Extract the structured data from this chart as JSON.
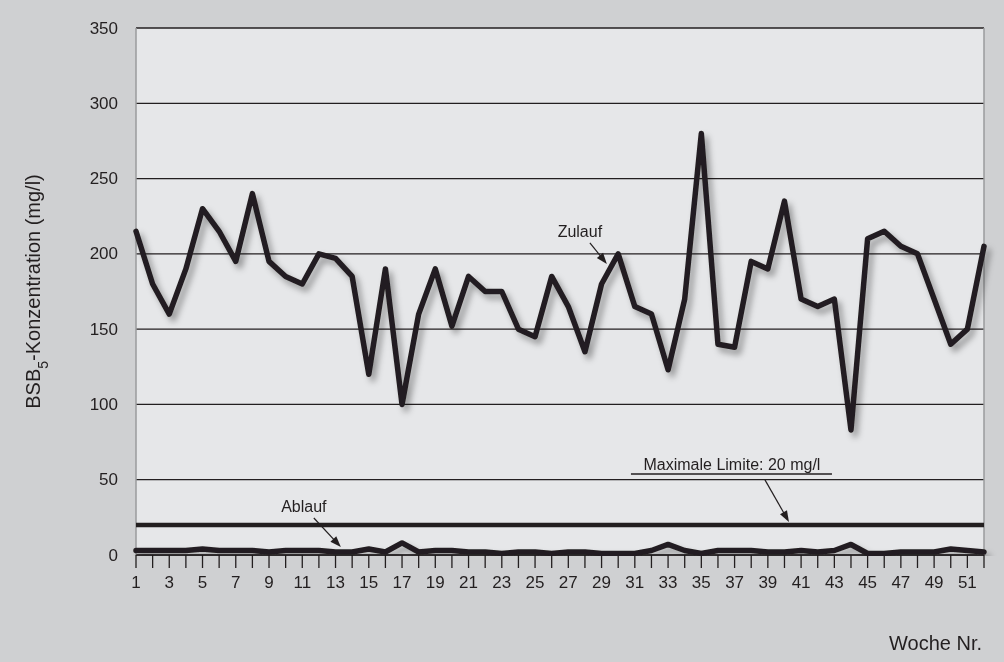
{
  "chart_data": {
    "type": "line",
    "xlabel": "Woche Nr.",
    "ylabel": "BSB$_{5}$-Konzentration (mg/l)",
    "x": [
      1,
      2,
      3,
      4,
      5,
      6,
      7,
      8,
      9,
      10,
      11,
      12,
      13,
      14,
      15,
      16,
      17,
      18,
      19,
      20,
      21,
      22,
      23,
      24,
      25,
      26,
      27,
      28,
      29,
      30,
      31,
      32,
      33,
      34,
      35,
      36,
      37,
      38,
      39,
      40,
      41,
      42,
      43,
      44,
      45,
      46,
      47,
      48,
      49,
      50,
      51,
      52
    ],
    "series": [
      {
        "name": "Zulauf",
        "color": "#231f20",
        "values": [
          215,
          180,
          160,
          190,
          230,
          215,
          195,
          240,
          195,
          185,
          180,
          200,
          197,
          185,
          120,
          190,
          100,
          160,
          190,
          152,
          185,
          175,
          175,
          150,
          145,
          185,
          165,
          135,
          180,
          200,
          165,
          160,
          123,
          170,
          280,
          140,
          138,
          195,
          190,
          235,
          170,
          165,
          170,
          83,
          210,
          215,
          205,
          200,
          170,
          140,
          150,
          205
        ]
      },
      {
        "name": "Ablauf",
        "color": "#231f20",
        "values": [
          3,
          3,
          3,
          3,
          4,
          3,
          3,
          3,
          2,
          3,
          3,
          3,
          2,
          2,
          4,
          2,
          8,
          2,
          3,
          3,
          2,
          2,
          1,
          2,
          2,
          1,
          2,
          2,
          1,
          1,
          1,
          3,
          7,
          3,
          1,
          3,
          3,
          3,
          2,
          2,
          3,
          2,
          3,
          7,
          1,
          1,
          2,
          2,
          2,
          4,
          3,
          2
        ]
      }
    ],
    "xlim": [
      1,
      52
    ],
    "xticks": [
      1,
      {
        "value": 2,
        "label": null
      },
      3,
      {
        "value": 4,
        "label": null
      },
      5,
      {
        "value": 6,
        "label": null
      },
      7,
      {
        "value": 8,
        "label": null
      },
      9,
      {
        "value": 10,
        "label": null
      },
      11,
      {
        "value": 12,
        "label": null
      },
      13,
      {
        "value": 14,
        "label": null
      },
      15,
      {
        "value": 16,
        "label": null
      },
      17,
      {
        "value": 18,
        "label": null
      },
      19,
      {
        "value": 20,
        "label": null
      },
      21,
      {
        "value": 22,
        "label": null
      },
      23,
      {
        "value": 24,
        "label": null
      },
      25,
      {
        "value": 26,
        "label": null
      },
      27,
      {
        "value": 28,
        "label": null
      },
      29,
      {
        "value": 30,
        "label": null
      },
      31,
      {
        "value": 32,
        "label": null
      },
      33,
      {
        "value": 34,
        "label": null
      },
      35,
      {
        "value": 36,
        "label": null
      },
      37,
      {
        "value": 38,
        "label": null
      },
      39,
      {
        "value": 40,
        "label": null
      },
      41,
      {
        "value": 42,
        "label": null
      },
      43,
      {
        "value": 44,
        "label": null
      },
      45,
      {
        "value": 46,
        "label": null
      },
      47,
      {
        "value": 48,
        "label": null
      },
      49,
      {
        "value": 50,
        "label": null
      },
      51,
      {
        "value": 52,
        "label": null
      }
    ],
    "ylim": [
      0,
      350
    ],
    "yticks": [
      0,
      50,
      100,
      150,
      200,
      250,
      300,
      350
    ],
    "grid": "y",
    "marker": "none",
    "line_style": "solid",
    "ref_lines": [
      {
        "axis": "y",
        "value": 20,
        "label": "Maximale Limite: 20 mg/l",
        "color": "#231f20",
        "line_style": "solid"
      }
    ]
  }
}
